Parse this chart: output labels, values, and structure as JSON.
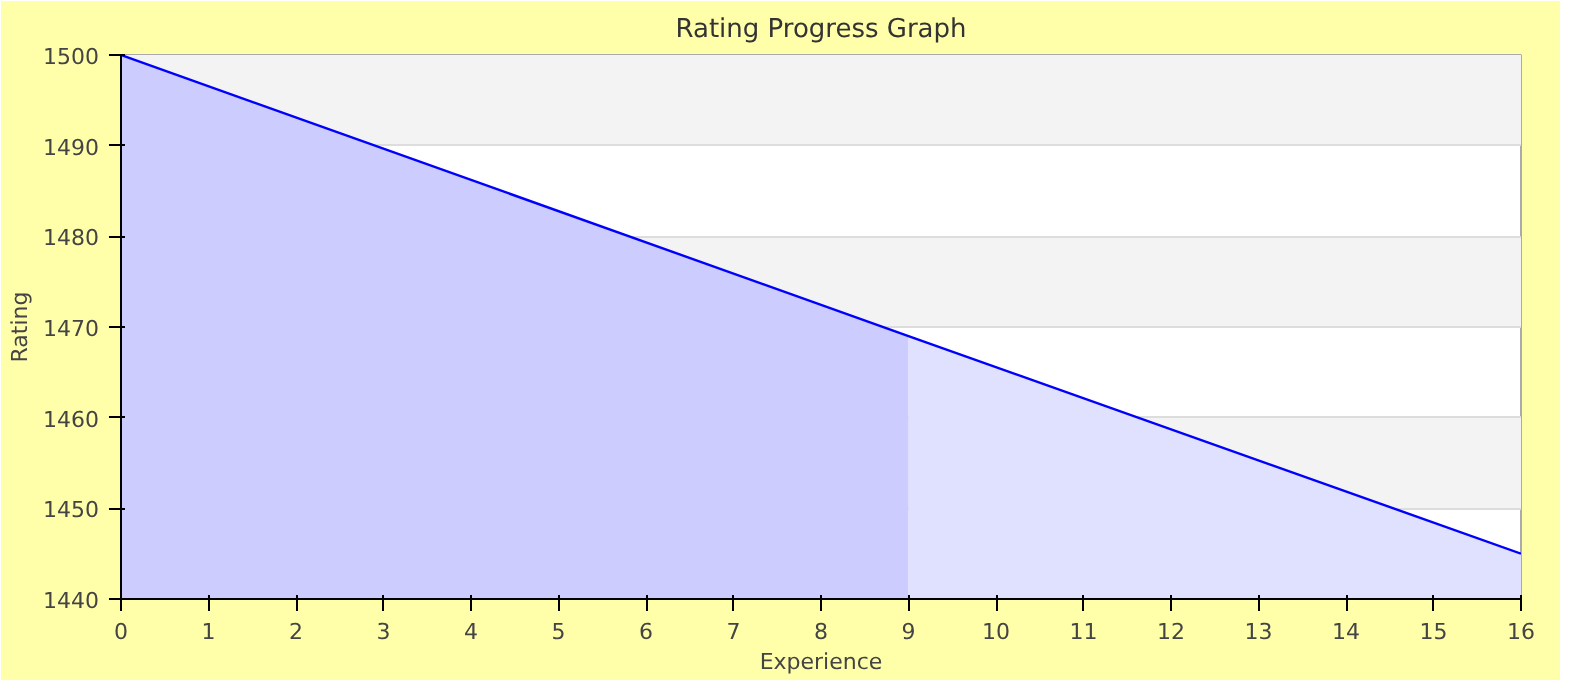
{
  "chart_data": {
    "type": "area",
    "title": "Rating Progress Graph",
    "xlabel": "Experience",
    "ylabel": "Rating",
    "series": [
      {
        "x": [
          0,
          9
        ],
        "values": [
          1500,
          1469
        ],
        "color": "#ccccff"
      },
      {
        "x": [
          9,
          16
        ],
        "values": [
          1469,
          1445
        ],
        "color": "#e0e0ff"
      },
      {
        "type": "line",
        "x": [
          0,
          9,
          16
        ],
        "values": [
          1500,
          1469,
          1445
        ],
        "color": "#0000ff"
      }
    ],
    "xlim": [
      0,
      16
    ],
    "xticks": [
      0,
      1,
      2,
      3,
      4,
      5,
      6,
      7,
      8,
      9,
      10,
      11,
      12,
      13,
      14,
      15,
      16
    ],
    "ylim": [
      1440,
      1500
    ],
    "yticks": [
      1440,
      1450,
      1460,
      1470,
      1480,
      1490,
      1500
    ],
    "grid": "y",
    "marker": "none",
    "line_style": "solid"
  }
}
